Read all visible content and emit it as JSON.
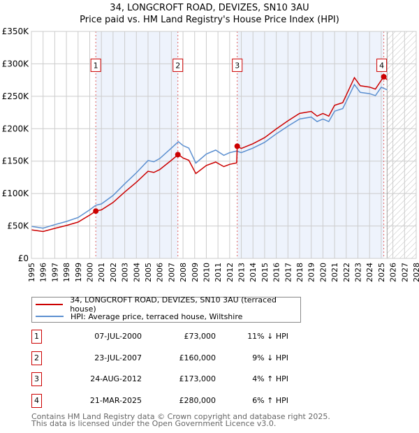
{
  "title": "34, LONGCROFT ROAD, DEVIZES, SN10 3AU",
  "subtitle": "Price paid vs. HM Land Registry's House Price Index (HPI)",
  "chart_data": {
    "type": "line",
    "title": "34, LONGCROFT ROAD, DEVIZES, SN10 3AU",
    "subtitle": "Price paid vs. HM Land Registry's House Price Index (HPI)",
    "xlim": [
      1995,
      2028
    ],
    "ylim": [
      0,
      350000
    ],
    "x_ticks": [
      "1995",
      "1996",
      "1997",
      "1998",
      "1999",
      "2000",
      "2001",
      "2002",
      "2003",
      "2004",
      "2005",
      "2006",
      "2007",
      "2008",
      "2009",
      "2010",
      "2011",
      "2012",
      "2013",
      "2014",
      "2015",
      "2016",
      "2017",
      "2018",
      "2019",
      "2020",
      "2021",
      "2022",
      "2023",
      "2024",
      "2025",
      "2026",
      "2027",
      "2028"
    ],
    "y_ticks": [
      {
        "v": 0,
        "label": "£0"
      },
      {
        "v": 50000,
        "label": "£50K"
      },
      {
        "v": 100000,
        "label": "£100K"
      },
      {
        "v": 150000,
        "label": "£150K"
      },
      {
        "v": 200000,
        "label": "£200K"
      },
      {
        "v": 250000,
        "label": "£250K"
      },
      {
        "v": 300000,
        "label": "£300K"
      },
      {
        "v": 350000,
        "label": "£350K"
      }
    ],
    "grid": true,
    "shaded_periods": [
      [
        2000.52,
        2007.56
      ],
      [
        2012.65,
        2025.22
      ]
    ],
    "forecast_hatch_from": 2025.5,
    "series": [
      {
        "name": "34, LONGCROFT ROAD, DEVIZES, SN10 3AU (terraced house)",
        "color": "#cc0000",
        "x": [
          1995,
          1996,
          1997,
          1998,
          1999,
          2000,
          2000.52,
          2001,
          2002,
          2003,
          2004,
          2005,
          2005.5,
          2006,
          2007,
          2007.6,
          2008,
          2008.5,
          2009.1,
          2010,
          2010.8,
          2011.5,
          2012,
          2012.6,
          2012.65,
          2013,
          2014,
          2015,
          2016,
          2017,
          2018,
          2019,
          2019.5,
          2020,
          2020.5,
          2021,
          2021.7,
          2022,
          2022.7,
          2023.2,
          2024,
          2024.5,
          2025,
          2025.22,
          2025.5
        ],
        "y": [
          44000,
          41500,
          46300,
          50700,
          56000,
          66800,
          73000,
          74800,
          86300,
          102400,
          117500,
          134400,
          132600,
          137000,
          151300,
          160200,
          154900,
          151300,
          130800,
          143300,
          148600,
          141500,
          145100,
          147300,
          173000,
          169500,
          176800,
          186200,
          199700,
          212200,
          223600,
          226700,
          219400,
          223600,
          219400,
          236100,
          240200,
          251700,
          278700,
          266200,
          264200,
          261000,
          274600,
          280000,
          275600
        ]
      },
      {
        "name": "HPI: Average price, terraced house, Wiltshire",
        "color": "#5b8fd0",
        "x": [
          1995,
          1996,
          1997,
          1998,
          1999,
          2000,
          2000.52,
          2001,
          2002,
          2003,
          2004,
          2005,
          2005.5,
          2006,
          2007,
          2007.6,
          2008,
          2008.5,
          2009.1,
          2010,
          2010.8,
          2011.5,
          2012,
          2012.6,
          2013,
          2014,
          2015,
          2016,
          2017,
          2018,
          2019,
          2019.5,
          2020,
          2020.5,
          2021,
          2021.7,
          2022,
          2022.7,
          2023.2,
          2024,
          2024.5,
          2025,
          2025.5
        ],
        "y": [
          49400,
          46600,
          52000,
          57000,
          63000,
          75000,
          82000,
          84000,
          97000,
          115000,
          132000,
          151000,
          149000,
          154000,
          170000,
          180000,
          174000,
          170000,
          147000,
          161000,
          167000,
          159000,
          163000,
          165500,
          163000,
          170000,
          179000,
          192000,
          204000,
          215000,
          218000,
          211000,
          215000,
          211000,
          227000,
          231000,
          242000,
          268000,
          256000,
          254000,
          251000,
          264000,
          260000
        ]
      }
    ],
    "sales": [
      {
        "id": "1",
        "x": 2000.52,
        "y": 73000
      },
      {
        "id": "2",
        "x": 2007.56,
        "y": 160000
      },
      {
        "id": "3",
        "x": 2012.65,
        "y": 173000
      },
      {
        "id": "4",
        "x": 2025.22,
        "y": 280000
      }
    ]
  },
  "legend": {
    "property": "34, LONGCROFT ROAD, DEVIZES, SN10 3AU (terraced house)",
    "hpi": "HPI: Average price, terraced house, Wiltshire"
  },
  "transactions": [
    {
      "num": "1",
      "date": "07-JUL-2000",
      "price": "£73,000",
      "hpi": "11% ↓ HPI"
    },
    {
      "num": "2",
      "date": "23-JUL-2007",
      "price": "£160,000",
      "hpi": "9% ↓ HPI"
    },
    {
      "num": "3",
      "date": "24-AUG-2012",
      "price": "£173,000",
      "hpi": "4% ↑ HPI"
    },
    {
      "num": "4",
      "date": "21-MAR-2025",
      "price": "£280,000",
      "hpi": "6% ↑ HPI"
    }
  ],
  "footer": {
    "line1": "Contains HM Land Registry data © Crown copyright and database right 2025.",
    "line2": "This data is licensed under the Open Government Licence v3.0."
  }
}
